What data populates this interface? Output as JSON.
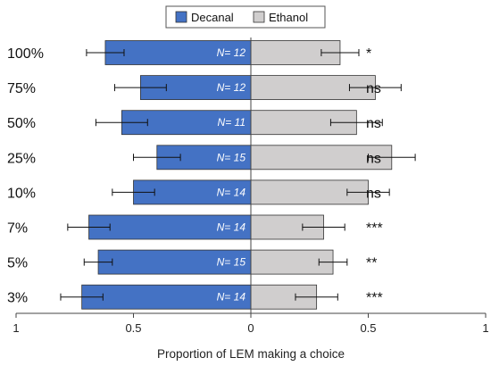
{
  "chart_data": {
    "type": "bar",
    "orientation": "horizontal-diverging",
    "xlabel": "Proportion of LEM making a choice",
    "x_ticks": [
      "1",
      "0.5",
      "0",
      "0.5",
      "1"
    ],
    "xlim": [
      -1,
      1
    ],
    "legend": {
      "placement": "top-center",
      "entries": [
        "Decanal",
        "Ethanol"
      ]
    },
    "categories": [
      "100%",
      "75%",
      "50%",
      "25%",
      "10%",
      "7%",
      "5%",
      "3%"
    ],
    "series": [
      {
        "name": "Decanal",
        "color": "#4472C4",
        "values": [
          0.62,
          0.47,
          0.55,
          0.4,
          0.5,
          0.69,
          0.65,
          0.72
        ],
        "error": [
          0.08,
          0.11,
          0.11,
          0.1,
          0.09,
          0.09,
          0.06,
          0.09
        ]
      },
      {
        "name": "Ethanol",
        "color": "#D0CECE",
        "values": [
          0.38,
          0.53,
          0.45,
          0.6,
          0.5,
          0.31,
          0.35,
          0.28
        ],
        "error": [
          0.08,
          0.11,
          0.11,
          0.1,
          0.09,
          0.09,
          0.06,
          0.09
        ]
      }
    ],
    "n_labels": [
      "N= 12",
      "N= 12",
      "N= 11",
      "N= 15",
      "N= 14",
      "N= 14",
      "N= 15",
      "N= 14"
    ],
    "significance": [
      "*",
      "ns",
      "ns",
      "ns",
      "ns",
      "***",
      "**",
      "***"
    ],
    "grid": false
  }
}
